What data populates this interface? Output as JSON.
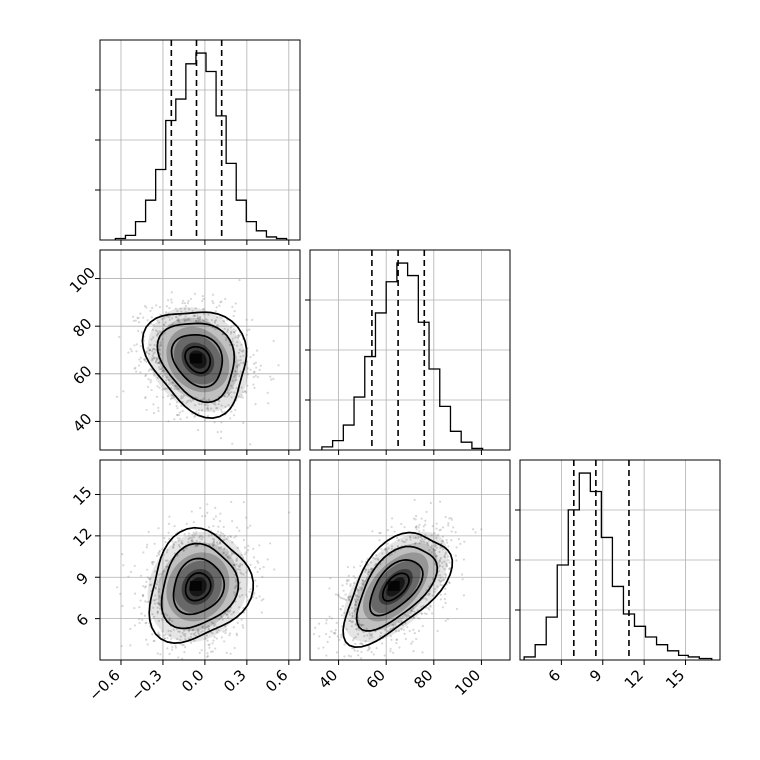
{
  "chart_data": {
    "type": "corner",
    "title": "",
    "parameters": [
      {
        "name": "",
        "range": [
          -0.75,
          0.68
        ],
        "ticks": [
          -0.6,
          -0.3,
          0.0,
          0.3,
          0.6
        ],
        "tick_labels": [
          "−0.6",
          "−0.3",
          "0.0",
          "0.3",
          "0.6"
        ],
        "quantiles": [
          -0.24,
          -0.06,
          0.12
        ],
        "histogram": {
          "edges": [
            -0.64,
            -0.568,
            -0.496,
            -0.424,
            -0.352,
            -0.28,
            -0.208,
            -0.136,
            -0.064,
            0.008,
            0.08,
            0.152,
            0.224,
            0.296,
            0.368,
            0.44,
            0.512,
            0.584
          ],
          "counts": [
            1,
            3,
            12,
            26,
            46,
            78,
            92,
            115,
            122,
            110,
            81,
            50,
            26,
            12,
            6,
            2,
            1
          ]
        }
      },
      {
        "name": "",
        "range": [
          28,
          112
        ],
        "ticks": [
          40,
          60,
          80,
          100
        ],
        "tick_labels": [
          "40",
          "60",
          "80",
          "100"
        ],
        "quantiles": [
          54,
          65,
          76
        ],
        "histogram": {
          "edges": [
            33,
            37.5,
            42,
            46.5,
            51,
            55.5,
            60,
            64.5,
            69,
            73.5,
            78,
            82.5,
            87,
            91.5,
            96,
            100.5
          ],
          "counts": [
            2,
            6,
            16,
            34,
            60,
            88,
            108,
            120,
            112,
            82,
            52,
            28,
            12,
            5,
            1
          ]
        }
      },
      {
        "name": "",
        "range": [
          3,
          17.5
        ],
        "ticks": [
          6,
          9,
          12,
          15
        ],
        "tick_labels": [
          "6",
          "9",
          "12",
          "15"
        ],
        "quantiles": [
          6.9,
          8.5,
          10.9
        ],
        "histogram": {
          "edges": [
            3.3,
            4.1,
            4.9,
            5.7,
            6.5,
            7.3,
            8.1,
            8.9,
            9.7,
            10.5,
            11.3,
            12.1,
            12.9,
            13.7,
            14.5,
            15.2,
            16,
            16.9
          ],
          "counts": [
            2,
            10,
            28,
            62,
            98,
            122,
            110,
            80,
            48,
            30,
            22,
            15,
            10,
            6,
            3,
            2,
            1
          ]
        }
      }
    ],
    "pairs": [
      {
        "x": 0,
        "y": 1,
        "center": [
          -0.05,
          66
        ],
        "spread": [
          0.18,
          11
        ],
        "correlation": -0.2,
        "contour_sigmas": [
          0.5,
          1.0,
          1.5,
          2.0
        ]
      },
      {
        "x": 0,
        "y": 2,
        "center": [
          -0.05,
          8.3
        ],
        "spread": [
          0.18,
          2.0
        ],
        "correlation": 0.15,
        "contour_sigmas": [
          0.5,
          1.0,
          1.5,
          2.0
        ]
      },
      {
        "x": 1,
        "y": 2,
        "center": [
          64,
          8.3
        ],
        "spread": [
          11,
          2.0
        ],
        "correlation": 0.55,
        "contour_sigmas": [
          0.5,
          1.0,
          1.5,
          2.0
        ]
      }
    ],
    "grid": true,
    "colors": {
      "line": "#000000",
      "grid": "#b0b0b0",
      "points": "#8c8c8c",
      "density": "#000000"
    }
  }
}
